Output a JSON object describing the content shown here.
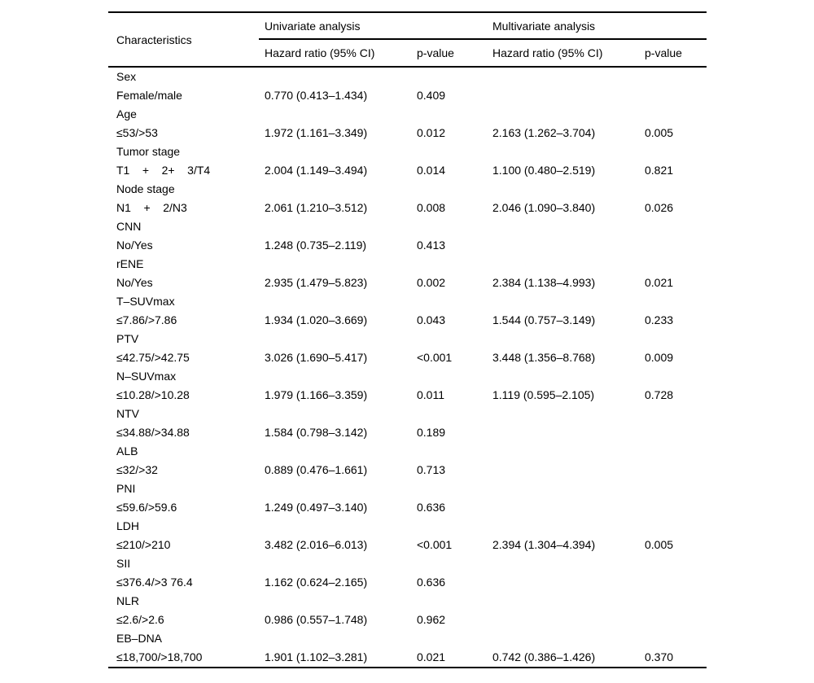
{
  "table": {
    "header": {
      "characteristics": "Characteristics",
      "group_univariate": "Univariate analysis",
      "group_multivariate": "Multivariate analysis",
      "uni_hr_label": "Hazard ratio (95% CI)",
      "uni_p_label": "p-value",
      "multi_hr_label": "Hazard ratio (95% CI)",
      "multi_p_label": "p-value"
    },
    "rows": [
      {
        "label": "Sex",
        "uni_hr": "",
        "uni_p": "",
        "multi_hr": "",
        "multi_p": ""
      },
      {
        "label": "Female/male",
        "uni_hr": "0.770 (0.413–1.434)",
        "uni_p": "0.409",
        "multi_hr": "",
        "multi_p": ""
      },
      {
        "label": "Age",
        "uni_hr": "",
        "uni_p": "",
        "multi_hr": "",
        "multi_p": ""
      },
      {
        "label": "≤53/>53",
        "uni_hr": "1.972 (1.161–3.349)",
        "uni_p": "0.012",
        "multi_hr": "2.163 (1.262–3.704)",
        "multi_p": "0.005"
      },
      {
        "label": "Tumor stage",
        "uni_hr": "",
        "uni_p": "",
        "multi_hr": "",
        "multi_p": ""
      },
      {
        "label": "T1    +    2+    3/T4",
        "uni_hr": "2.004 (1.149–3.494)",
        "uni_p": "0.014",
        "multi_hr": "1.100 (0.480–2.519)",
        "multi_p": "0.821"
      },
      {
        "label": "Node stage",
        "uni_hr": "",
        "uni_p": "",
        "multi_hr": "",
        "multi_p": ""
      },
      {
        "label": "N1    +    2/N3",
        "uni_hr": "2.061 (1.210–3.512)",
        "uni_p": "0.008",
        "multi_hr": "2.046 (1.090–3.840)",
        "multi_p": "0.026"
      },
      {
        "label": "CNN",
        "uni_hr": "",
        "uni_p": "",
        "multi_hr": "",
        "multi_p": ""
      },
      {
        "label": "No/Yes",
        "uni_hr": "1.248 (0.735–2.119)",
        "uni_p": "0.413",
        "multi_hr": "",
        "multi_p": ""
      },
      {
        "label": "rENE",
        "uni_hr": "",
        "uni_p": "",
        "multi_hr": "",
        "multi_p": ""
      },
      {
        "label": "No/Yes",
        "uni_hr": "2.935 (1.479–5.823)",
        "uni_p": "0.002",
        "multi_hr": "2.384 (1.138–4.993)",
        "multi_p": "0.021"
      },
      {
        "label": "T–SUVmax",
        "uni_hr": "",
        "uni_p": "",
        "multi_hr": "",
        "multi_p": ""
      },
      {
        "label": "≤7.86/>7.86",
        "uni_hr": "1.934 (1.020–3.669)",
        "uni_p": "0.043",
        "multi_hr": "1.544 (0.757–3.149)",
        "multi_p": "0.233"
      },
      {
        "label": "PTV",
        "uni_hr": "",
        "uni_p": "",
        "multi_hr": "",
        "multi_p": ""
      },
      {
        "label": "≤42.75/>42.75",
        "uni_hr": "3.026 (1.690–5.417)",
        "uni_p": "<0.001",
        "multi_hr": "3.448 (1.356–8.768)",
        "multi_p": "0.009"
      },
      {
        "label": "N–SUVmax",
        "uni_hr": "",
        "uni_p": "",
        "multi_hr": "",
        "multi_p": ""
      },
      {
        "label": "≤10.28/>10.28",
        "uni_hr": "1.979 (1.166–3.359)",
        "uni_p": "0.011",
        "multi_hr": "1.119 (0.595–2.105)",
        "multi_p": "0.728"
      },
      {
        "label": "NTV",
        "uni_hr": "",
        "uni_p": "",
        "multi_hr": "",
        "multi_p": ""
      },
      {
        "label": "≤34.88/>34.88",
        "uni_hr": "1.584 (0.798–3.142)",
        "uni_p": "0.189",
        "multi_hr": "",
        "multi_p": ""
      },
      {
        "label": "ALB",
        "uni_hr": "",
        "uni_p": "",
        "multi_hr": "",
        "multi_p": ""
      },
      {
        "label": "≤32/>32",
        "uni_hr": "0.889 (0.476–1.661)",
        "uni_p": "0.713",
        "multi_hr": "",
        "multi_p": ""
      },
      {
        "label": "PNI",
        "uni_hr": "",
        "uni_p": "",
        "multi_hr": "",
        "multi_p": ""
      },
      {
        "label": "≤59.6/>59.6",
        "uni_hr": "1.249 (0.497–3.140)",
        "uni_p": "0.636",
        "multi_hr": "",
        "multi_p": ""
      },
      {
        "label": "LDH",
        "uni_hr": "",
        "uni_p": "",
        "multi_hr": "",
        "multi_p": ""
      },
      {
        "label": "≤210/>210",
        "uni_hr": "3.482 (2.016–6.013)",
        "uni_p": "<0.001",
        "multi_hr": "2.394 (1.304–4.394)",
        "multi_p": "0.005"
      },
      {
        "label": "SII",
        "uni_hr": "",
        "uni_p": "",
        "multi_hr": "",
        "multi_p": ""
      },
      {
        "label": "≤376.4/>3 76.4",
        "uni_hr": "1.162 (0.624–2.165)",
        "uni_p": "0.636",
        "multi_hr": "",
        "multi_p": ""
      },
      {
        "label": "NLR",
        "uni_hr": "",
        "uni_p": "",
        "multi_hr": "",
        "multi_p": ""
      },
      {
        "label": "≤2.6/>2.6",
        "uni_hr": "0.986 (0.557–1.748)",
        "uni_p": "0.962",
        "multi_hr": "",
        "multi_p": ""
      },
      {
        "label": "EB–DNA",
        "uni_hr": "",
        "uni_p": "",
        "multi_hr": "",
        "multi_p": ""
      },
      {
        "label": "≤18,700/>18,700",
        "uni_hr": "1.901 (1.102–3.281)",
        "uni_p": "0.021",
        "multi_hr": "0.742 (0.386–1.426)",
        "multi_p": "0.370"
      }
    ]
  }
}
